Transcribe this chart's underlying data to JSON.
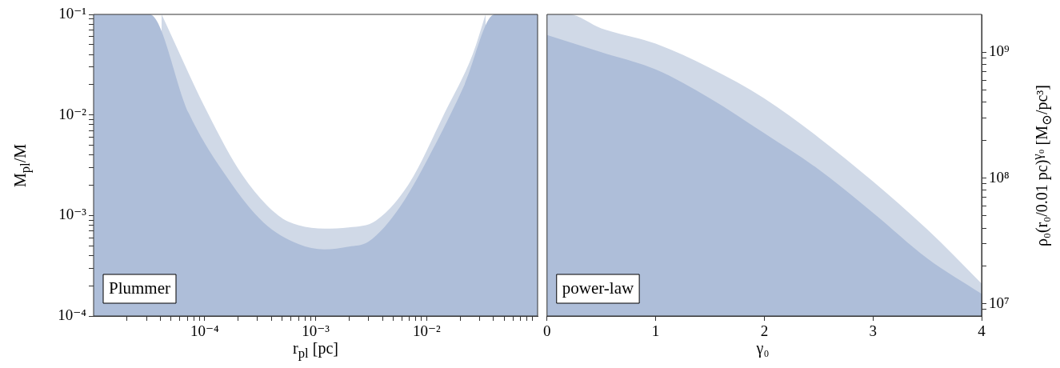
{
  "chart_data": [
    {
      "type": "area",
      "xlabel": "r$_{pl}$ [pc]",
      "ylabel": "M$_{pl}$/M",
      "log": "xy",
      "grid": false,
      "legend": false,
      "annotations": [
        "Plummer"
      ],
      "xlim": [
        1e-05,
        0.1
      ],
      "ylim": [
        0.0001,
        0.1
      ],
      "xticks": [
        {
          "value": 2e-05,
          "label": null
        },
        {
          "value": 3e-05,
          "label": null
        },
        {
          "value": 4e-05,
          "label": null
        },
        {
          "value": 5e-05,
          "label": null
        },
        {
          "value": 6e-05,
          "label": null
        },
        {
          "value": 7e-05,
          "label": null
        },
        {
          "value": 8e-05,
          "label": null
        },
        {
          "value": 9e-05,
          "label": null
        },
        {
          "value": 0.0001,
          "label": "10⁻⁴"
        },
        {
          "value": 0.0002,
          "label": null
        },
        {
          "value": 0.0003,
          "label": null
        },
        {
          "value": 0.0004,
          "label": null
        },
        {
          "value": 0.0005,
          "label": null
        },
        {
          "value": 0.0006,
          "label": null
        },
        {
          "value": 0.0007,
          "label": null
        },
        {
          "value": 0.0008,
          "label": null
        },
        {
          "value": 0.0009,
          "label": null
        },
        {
          "value": 0.001,
          "label": "10⁻³"
        },
        {
          "value": 0.002,
          "label": null
        },
        {
          "value": 0.003,
          "label": null
        },
        {
          "value": 0.004,
          "label": null
        },
        {
          "value": 0.005,
          "label": null
        },
        {
          "value": 0.006,
          "label": null
        },
        {
          "value": 0.007,
          "label": null
        },
        {
          "value": 0.008,
          "label": null
        },
        {
          "value": 0.009,
          "label": null
        },
        {
          "value": 0.01,
          "label": "10⁻²"
        },
        {
          "value": 0.02,
          "label": null
        },
        {
          "value": 0.03,
          "label": null
        },
        {
          "value": 0.04,
          "label": null
        },
        {
          "value": 0.05,
          "label": null
        },
        {
          "value": 0.06,
          "label": null
        },
        {
          "value": 0.07,
          "label": null
        },
        {
          "value": 0.08,
          "label": null
        },
        {
          "value": 0.09,
          "label": null
        }
      ],
      "yticks": [
        {
          "value": 0.0001,
          "label": "10⁻⁴"
        },
        {
          "value": 0.0002,
          "label": null
        },
        {
          "value": 0.0003,
          "label": null
        },
        {
          "value": 0.0004,
          "label": null
        },
        {
          "value": 0.0005,
          "label": null
        },
        {
          "value": 0.0006,
          "label": null
        },
        {
          "value": 0.0007,
          "label": null
        },
        {
          "value": 0.0008,
          "label": null
        },
        {
          "value": 0.0009,
          "label": null
        },
        {
          "value": 0.001,
          "label": "10⁻³"
        },
        {
          "value": 0.002,
          "label": null
        },
        {
          "value": 0.003,
          "label": null
        },
        {
          "value": 0.004,
          "label": null
        },
        {
          "value": 0.005,
          "label": null
        },
        {
          "value": 0.006,
          "label": null
        },
        {
          "value": 0.007,
          "label": null
        },
        {
          "value": 0.008,
          "label": null
        },
        {
          "value": 0.009,
          "label": null
        },
        {
          "value": 0.01,
          "label": "10⁻²"
        },
        {
          "value": 0.02,
          "label": null
        },
        {
          "value": 0.03,
          "label": null
        },
        {
          "value": 0.04,
          "label": null
        },
        {
          "value": 0.05,
          "label": null
        },
        {
          "value": 0.06,
          "label": null
        },
        {
          "value": 0.07,
          "label": null
        },
        {
          "value": 0.08,
          "label": null
        },
        {
          "value": 0.09,
          "label": null
        },
        {
          "value": 0.1,
          "label": "10⁻¹"
        }
      ],
      "series": [
        {
          "color": "#aebed9",
          "x": [
            1e-05,
            3.2e-05,
            7.2e-05,
            0.000155,
            0.00034,
            0.0007,
            0.0012,
            0.002,
            0.003,
            0.0057,
            0.012,
            0.022,
            0.041,
            0.1
          ],
          "values": [
            0.1,
            0.1,
            0.0104,
            0.0025,
            0.00085,
            0.00052,
            0.00046,
            0.00049,
            0.00055,
            0.0012,
            0.0051,
            0.02,
            0.1,
            0.1
          ]
        },
        {
          "color": "#d0d9e7",
          "x": [
            4.1e-05,
            0.000107,
            0.00022,
            0.00046,
            0.0007,
            0.0012,
            0.002,
            0.0035,
            0.007,
            0.0145,
            0.026,
            0.034
          ],
          "values": [
            0.1,
            0.0104,
            0.0025,
            0.001,
            0.0008,
            0.00074,
            0.00076,
            0.00089,
            0.0021,
            0.0104,
            0.04,
            0.1
          ]
        }
      ]
    },
    {
      "type": "area",
      "xlabel": "γ₀",
      "y2label": "ρ₀(r₀/0.01 pc)$^{γ₀}$ [M$_{⊙}$/pc³]",
      "log": "y2",
      "grid": false,
      "legend": false,
      "annotations": [
        "power-law"
      ],
      "xlim": [
        0,
        4
      ],
      "xticks": [
        0,
        1,
        2,
        3,
        4
      ],
      "y2lim": [
        8000000,
        2000000000
      ],
      "y2ticks": [
        {
          "value": 9000000,
          "label": null
        },
        {
          "value": 10000000,
          "label": "10⁷"
        },
        {
          "value": 20000000,
          "label": null
        },
        {
          "value": 30000000,
          "label": null
        },
        {
          "value": 40000000,
          "label": null
        },
        {
          "value": 50000000,
          "label": null
        },
        {
          "value": 60000000,
          "label": null
        },
        {
          "value": 70000000,
          "label": null
        },
        {
          "value": 80000000,
          "label": null
        },
        {
          "value": 90000000,
          "label": null
        },
        {
          "value": 100000000,
          "label": "10⁸"
        },
        {
          "value": 200000000,
          "label": null
        },
        {
          "value": 300000000,
          "label": null
        },
        {
          "value": 400000000,
          "label": null
        },
        {
          "value": 500000000,
          "label": null
        },
        {
          "value": 600000000,
          "label": null
        },
        {
          "value": 700000000,
          "label": null
        },
        {
          "value": 800000000,
          "label": null
        },
        {
          "value": 900000000,
          "label": null
        },
        {
          "value": 1000000000,
          "label": "10⁹"
        }
      ],
      "series": [
        {
          "color": "#aebed9",
          "axis": "y2",
          "x": [
            0,
            0.5,
            1,
            1.5,
            2,
            2.5,
            3,
            3.5,
            4
          ],
          "values": [
            1370000000,
            1000000000,
            730000000,
            430000000,
            227000000,
            117000000,
            53000000,
            23000000,
            12000000
          ]
        },
        {
          "color": "#d0d9e7",
          "axis": "y2",
          "x": [
            0,
            0.2,
            0.5,
            1,
            1.5,
            2,
            2.5,
            3,
            3.5,
            4
          ],
          "values": [
            2000000000,
            2000000000,
            1550000000,
            1170000000,
            750000000,
            430000000,
            210000000,
            94000000,
            39000000,
            14500000
          ]
        }
      ]
    }
  ]
}
